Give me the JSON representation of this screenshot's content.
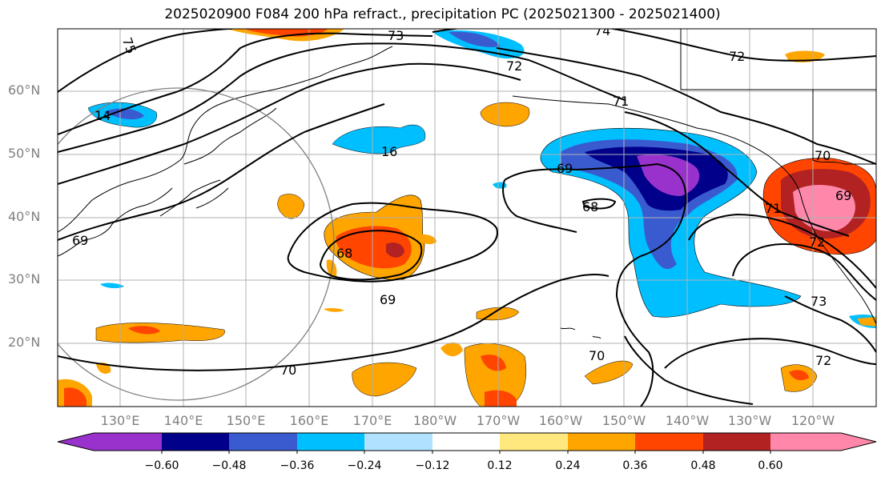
{
  "title": "2025020900 F084 200 hPa refract., precipitation PC (2025021300 - 2025021400)",
  "map": {
    "lat_labels": [
      "60°N",
      "50°N",
      "40°N",
      "30°N",
      "20°N"
    ],
    "lon_labels": [
      "130°E",
      "140°E",
      "150°E",
      "160°E",
      "170°E",
      "180°W",
      "170°W",
      "160°W",
      "150°W",
      "140°W",
      "130°W",
      "120°W"
    ],
    "contour_labels": [
      "75",
      "73",
      "74",
      "72",
      "72",
      "71",
      "14",
      "16",
      "69",
      "68",
      "69",
      "70",
      "71",
      "72",
      "69",
      "68",
      "69",
      "73",
      "70",
      "70",
      "72"
    ]
  },
  "colorbar": {
    "colors": [
      "#9932cc",
      "#00008b",
      "#3a5bd0",
      "#00bfff",
      "#b0e2ff",
      "#ffffff",
      "#ffe97f",
      "#ffa500",
      "#ff4500",
      "#b22222",
      "#ff88aa"
    ],
    "tick_labels": [
      "−0.60",
      "−0.48",
      "−0.36",
      "−0.24",
      "−0.12",
      "0.12",
      "0.24",
      "0.36",
      "0.48",
      "0.60"
    ]
  },
  "colors": {
    "grid": "#b0b0b0",
    "coast": "#000000",
    "axis_label": "#808080"
  }
}
